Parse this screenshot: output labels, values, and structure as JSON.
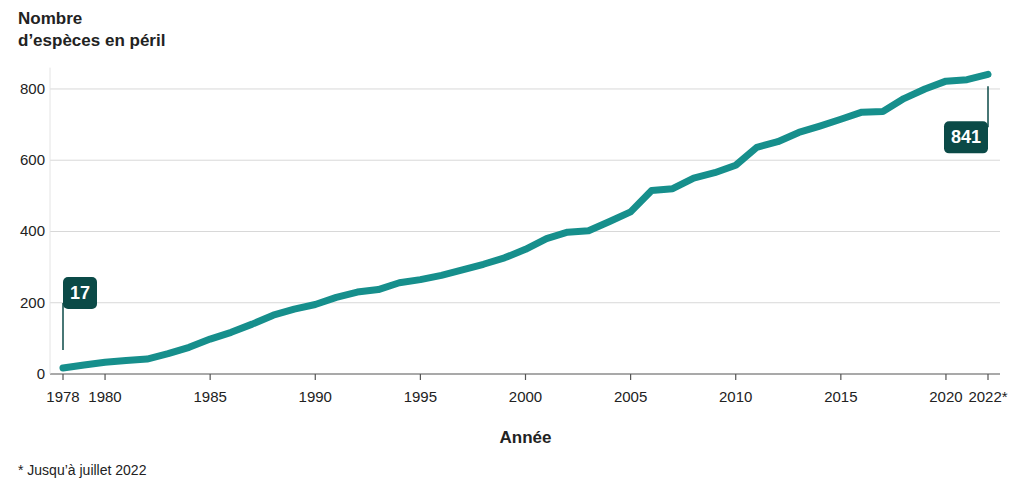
{
  "chart_data": {
    "type": "line",
    "y_label": "Nombre d’espèces en péril",
    "x_label": "Année",
    "note": "* Jusqu’à juillet 2022",
    "x": [
      1978,
      1979,
      1980,
      1981,
      1982,
      1983,
      1984,
      1985,
      1986,
      1987,
      1988,
      1989,
      1990,
      1991,
      1992,
      1993,
      1994,
      1995,
      1996,
      1997,
      1998,
      1999,
      2000,
      2001,
      2002,
      2003,
      2004,
      2005,
      2006,
      2007,
      2008,
      2009,
      2010,
      2011,
      2012,
      2013,
      2014,
      2015,
      2016,
      2017,
      2018,
      2019,
      2020,
      2021,
      2022
    ],
    "series": [
      {
        "name": "Nombre d’espèces en péril",
        "color": "#168f8c",
        "values": [
          17,
          25,
          33,
          38,
          42,
          57,
          75,
          98,
          117,
          140,
          165,
          182,
          195,
          215,
          230,
          237,
          256,
          265,
          277,
          292,
          308,
          326,
          350,
          380,
          398,
          402,
          428,
          455,
          515,
          520,
          550,
          565,
          586,
          636,
          652,
          678,
          696,
          715,
          735,
          737,
          773,
          800,
          822,
          826,
          841
        ]
      }
    ],
    "annotations": [
      {
        "x": 1978,
        "y": 17,
        "text": "17"
      },
      {
        "x": 2022,
        "y": 841,
        "text": "841"
      }
    ],
    "xlim": [
      1978,
      2022
    ],
    "xticks": [
      1978,
      1980,
      1985,
      1990,
      1995,
      2000,
      2005,
      2010,
      2015,
      2020,
      {
        "value": 2022,
        "label": "2022*"
      }
    ],
    "ylim": [
      0,
      860
    ],
    "yticks": [
      0,
      200,
      400,
      600,
      800
    ],
    "grid": true
  }
}
